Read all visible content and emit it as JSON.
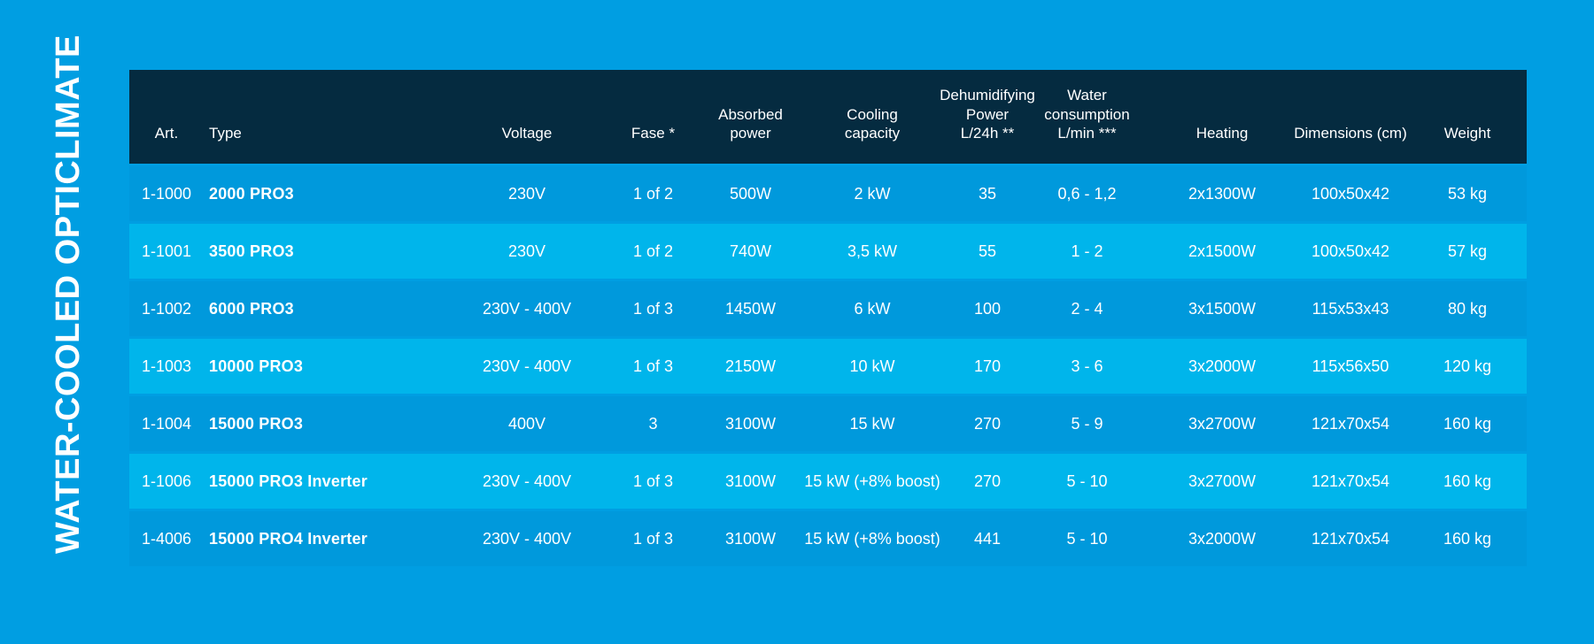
{
  "page": {
    "vertical_title": "WATER-COOLED OPTICLIMATE",
    "colors": {
      "page_bg": "#009EE2",
      "header_bg": "#052B40",
      "row_base_bg": "#0099DC",
      "row_alt_bg": "#00B5EB",
      "text": "#FFFFFF"
    }
  },
  "table": {
    "columns": [
      "Art.",
      "Type",
      "Voltage",
      "Fase *",
      "Absorbed\npower",
      "Cooling\ncapacity",
      "Dehumidifying\nPower\nL/24h **",
      "Water\nconsumption\nL/min ***",
      "Heating",
      "Dimensions (cm)",
      "Weight"
    ],
    "rows": [
      [
        "1-1000",
        "2000 PRO3",
        "230V",
        "1 of 2",
        "500W",
        "2 kW",
        "35",
        "0,6 - 1,2",
        "2x1300W",
        "100x50x42",
        "53 kg"
      ],
      [
        "1-1001",
        "3500 PRO3",
        "230V",
        "1 of 2",
        "740W",
        "3,5 kW",
        "55",
        "1 - 2",
        "2x1500W",
        "100x50x42",
        "57 kg"
      ],
      [
        "1-1002",
        "6000 PRO3",
        "230V - 400V",
        "1 of 3",
        "1450W",
        "6 kW",
        "100",
        "2 - 4",
        "3x1500W",
        "115x53x43",
        "80 kg"
      ],
      [
        "1-1003",
        "10000 PRO3",
        "230V - 400V",
        "1 of 3",
        "2150W",
        "10 kW",
        "170",
        "3 - 6",
        "3x2000W",
        "115x56x50",
        "120 kg"
      ],
      [
        "1-1004",
        "15000 PRO3",
        "400V",
        "3",
        "3100W",
        "15 kW",
        "270",
        "5 - 9",
        "3x2700W",
        "121x70x54",
        "160 kg"
      ],
      [
        "1-1006",
        "15000 PRO3 Inverter",
        "230V - 400V",
        "1 of 3",
        "3100W",
        "15 kW (+8% boost)",
        "270",
        "5 - 10",
        "3x2700W",
        "121x70x54",
        "160 kg"
      ],
      [
        "1-4006",
        "15000 PRO4 Inverter",
        "230V - 400V",
        "1 of 3",
        "3100W",
        "15 kW (+8% boost)",
        "441",
        "5 - 10",
        "3x2000W",
        "121x70x54",
        "160 kg"
      ]
    ]
  }
}
